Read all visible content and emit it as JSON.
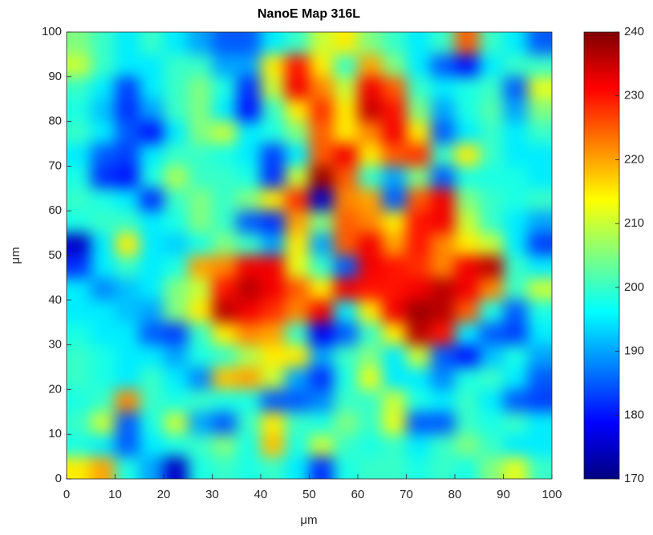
{
  "chart_data": {
    "type": "heatmap",
    "title": "NanoE Map 316L",
    "xlabel": "μm",
    "ylabel": "μm",
    "colormap": "jet",
    "xlim": [
      0,
      100
    ],
    "ylim": [
      0,
      100
    ],
    "xticks": [
      0,
      10,
      20,
      30,
      40,
      50,
      60,
      70,
      80,
      90,
      100
    ],
    "yticks": [
      0,
      10,
      20,
      30,
      40,
      50,
      60,
      70,
      80,
      90,
      100
    ],
    "clim": [
      170,
      240
    ],
    "cticks": [
      170,
      180,
      190,
      200,
      210,
      220,
      230,
      240
    ],
    "x": [
      2.5,
      7.5,
      12.5,
      17.5,
      22.5,
      27.5,
      32.5,
      37.5,
      42.5,
      47.5,
      52.5,
      57.5,
      62.5,
      67.5,
      72.5,
      77.5,
      82.5,
      87.5,
      92.5,
      97.5
    ],
    "y": [
      97.5,
      92.5,
      87.5,
      82.5,
      77.5,
      72.5,
      67.5,
      62.5,
      57.5,
      52.5,
      47.5,
      42.5,
      37.5,
      32.5,
      27.5,
      22.5,
      17.5,
      12.5,
      7.5,
      2.5
    ],
    "z": [
      [
        205,
        200,
        195,
        200,
        195,
        190,
        185,
        185,
        195,
        200,
        210,
        215,
        205,
        200,
        195,
        200,
        225,
        200,
        195,
        185
      ],
      [
        210,
        200,
        195,
        195,
        200,
        200,
        190,
        190,
        215,
        230,
        215,
        200,
        220,
        205,
        195,
        185,
        180,
        195,
        200,
        200
      ],
      [
        200,
        195,
        183,
        195,
        200,
        205,
        198,
        182,
        210,
        232,
        222,
        210,
        232,
        225,
        200,
        195,
        198,
        200,
        185,
        212
      ],
      [
        198,
        192,
        182,
        190,
        200,
        205,
        195,
        180,
        200,
        215,
        228,
        215,
        235,
        230,
        205,
        190,
        198,
        202,
        190,
        205
      ],
      [
        200,
        195,
        185,
        180,
        195,
        205,
        210,
        195,
        198,
        205,
        225,
        215,
        222,
        232,
        215,
        185,
        195,
        200,
        195,
        200
      ],
      [
        195,
        185,
        183,
        195,
        200,
        200,
        198,
        195,
        183,
        195,
        225,
        232,
        215,
        225,
        228,
        200,
        215,
        200,
        195,
        195
      ],
      [
        198,
        182,
        180,
        198,
        208,
        200,
        200,
        198,
        182,
        210,
        238,
        225,
        200,
        190,
        205,
        185,
        198,
        198,
        198,
        195
      ],
      [
        200,
        198,
        195,
        182,
        200,
        205,
        200,
        205,
        215,
        228,
        175,
        222,
        220,
        185,
        225,
        232,
        205,
        200,
        198,
        200
      ],
      [
        198,
        200,
        200,
        195,
        198,
        205,
        200,
        185,
        182,
        220,
        205,
        225,
        222,
        215,
        230,
        232,
        210,
        200,
        195,
        190
      ],
      [
        175,
        195,
        215,
        195,
        193,
        198,
        205,
        200,
        190,
        215,
        190,
        225,
        232,
        220,
        230,
        222,
        215,
        210,
        195,
        183
      ],
      [
        182,
        195,
        200,
        195,
        198,
        220,
        222,
        232,
        232,
        212,
        200,
        185,
        232,
        230,
        228,
        222,
        232,
        236,
        200,
        195
      ],
      [
        195,
        188,
        192,
        195,
        205,
        210,
        230,
        236,
        232,
        225,
        215,
        232,
        230,
        230,
        232,
        236,
        232,
        222,
        200,
        210
      ],
      [
        195,
        195,
        192,
        190,
        205,
        215,
        236,
        232,
        228,
        222,
        232,
        195,
        215,
        232,
        238,
        236,
        225,
        198,
        185,
        198
      ],
      [
        198,
        195,
        195,
        185,
        183,
        200,
        215,
        222,
        220,
        200,
        178,
        185,
        200,
        215,
        236,
        230,
        195,
        185,
        183,
        195
      ],
      [
        200,
        198,
        195,
        195,
        190,
        198,
        200,
        208,
        215,
        215,
        190,
        200,
        205,
        195,
        210,
        185,
        180,
        192,
        198,
        190
      ],
      [
        200,
        198,
        195,
        200,
        195,
        188,
        218,
        220,
        210,
        190,
        182,
        198,
        212,
        195,
        195,
        188,
        198,
        200,
        195,
        185
      ],
      [
        198,
        200,
        222,
        200,
        198,
        200,
        198,
        198,
        185,
        185,
        188,
        200,
        200,
        210,
        198,
        195,
        200,
        195,
        185,
        183
      ],
      [
        200,
        210,
        185,
        198,
        210,
        190,
        185,
        200,
        215,
        200,
        198,
        205,
        200,
        212,
        185,
        185,
        200,
        198,
        200,
        195
      ],
      [
        198,
        195,
        185,
        195,
        198,
        200,
        205,
        198,
        218,
        198,
        210,
        200,
        198,
        200,
        195,
        200,
        205,
        200,
        195,
        195
      ],
      [
        215,
        220,
        198,
        190,
        175,
        198,
        200,
        198,
        200,
        195,
        182,
        198,
        200,
        200,
        198,
        200,
        198,
        205,
        212,
        200
      ]
    ]
  }
}
